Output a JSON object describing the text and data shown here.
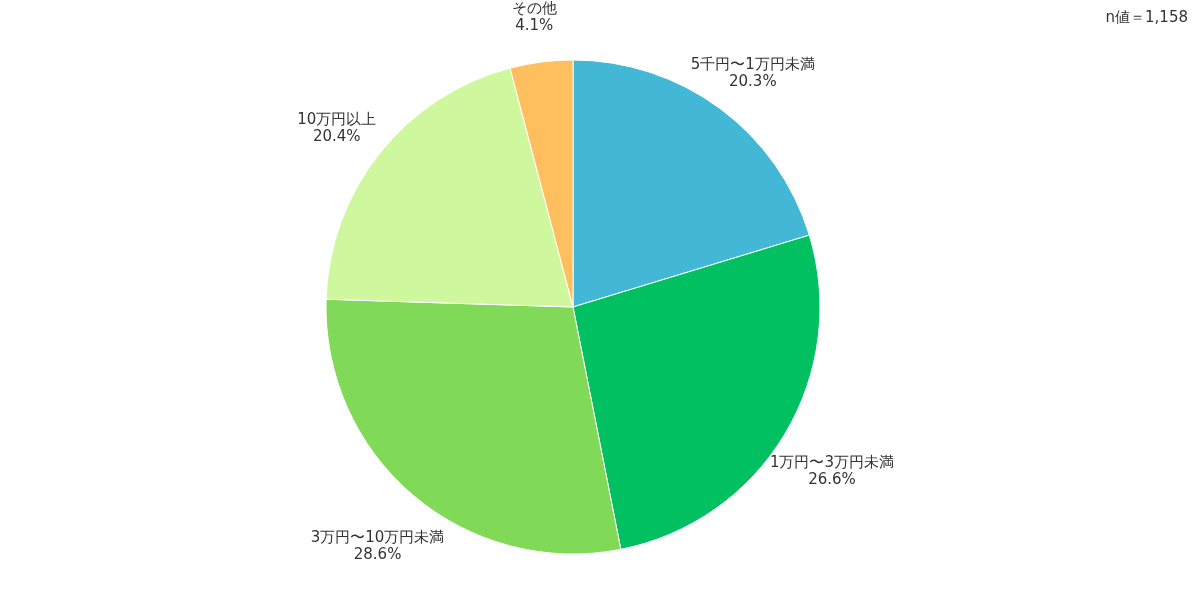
{
  "chart_data": {
    "type": "pie",
    "categories": [
      "5千円〜1万円未満",
      "1万円〜3万円未満",
      "3万円〜10万円未満",
      "10万円以上",
      "その他"
    ],
    "values": [
      20.3,
      26.6,
      28.6,
      20.4,
      4.1
    ],
    "value_labels": [
      "20.3%",
      "26.6%",
      "28.6%",
      "20.4%",
      "4.1%"
    ],
    "colors": [
      "#43b7d6",
      "#00c062",
      "#80d957",
      "#cff79d",
      "#ffbf5f"
    ],
    "annotations": [
      "n値＝1,158"
    ]
  }
}
